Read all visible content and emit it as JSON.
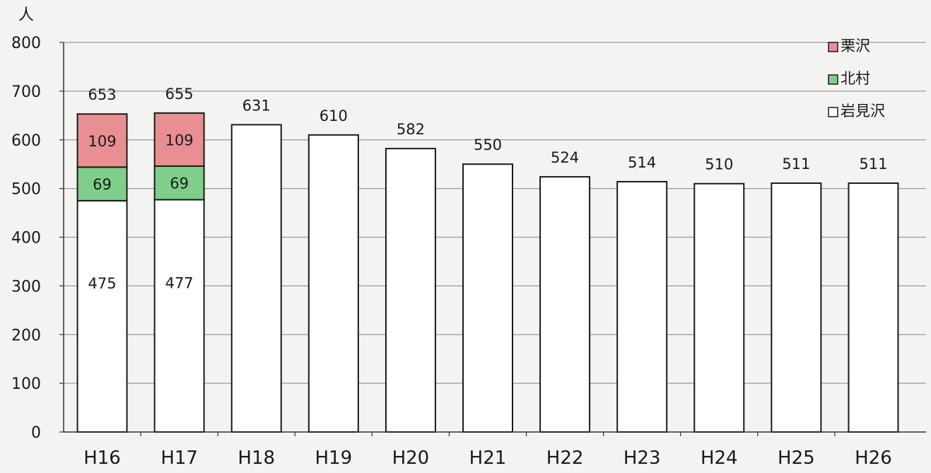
{
  "chart_data": {
    "type": "bar",
    "stacked": true,
    "unit_label": "人",
    "categories": [
      "H16",
      "H17",
      "H18",
      "H19",
      "H20",
      "H21",
      "H22",
      "H23",
      "H24",
      "H25",
      "H26"
    ],
    "series": [
      {
        "name": "岩見沢",
        "color": "#ffffff",
        "values": [
          475,
          477,
          631,
          610,
          582,
          550,
          524,
          514,
          510,
          511,
          511
        ]
      },
      {
        "name": "北村",
        "color": "#7fcf8a",
        "values": [
          69,
          69,
          null,
          null,
          null,
          null,
          null,
          null,
          null,
          null,
          null
        ]
      },
      {
        "name": "栗沢",
        "color": "#e98f93",
        "values": [
          109,
          109,
          null,
          null,
          null,
          null,
          null,
          null,
          null,
          null,
          null
        ]
      }
    ],
    "segment_labels": {
      "岩見沢": [
        "475",
        "477",
        null,
        null,
        null,
        null,
        null,
        null,
        null,
        null,
        null
      ],
      "北村": [
        "69",
        "69",
        null,
        null,
        null,
        null,
        null,
        null,
        null,
        null,
        null
      ],
      "栗沢": [
        "109",
        "109",
        null,
        null,
        null,
        null,
        null,
        null,
        null,
        null,
        null
      ]
    },
    "totals": [
      653,
      655,
      631,
      610,
      582,
      550,
      524,
      514,
      510,
      511,
      511
    ],
    "ylim": [
      0,
      800
    ],
    "yticks": [
      0,
      100,
      200,
      300,
      400,
      500,
      600,
      700,
      800
    ],
    "legend_order": [
      "栗沢",
      "北村",
      "岩見沢"
    ],
    "legend_position": "top-right",
    "grid": true
  }
}
